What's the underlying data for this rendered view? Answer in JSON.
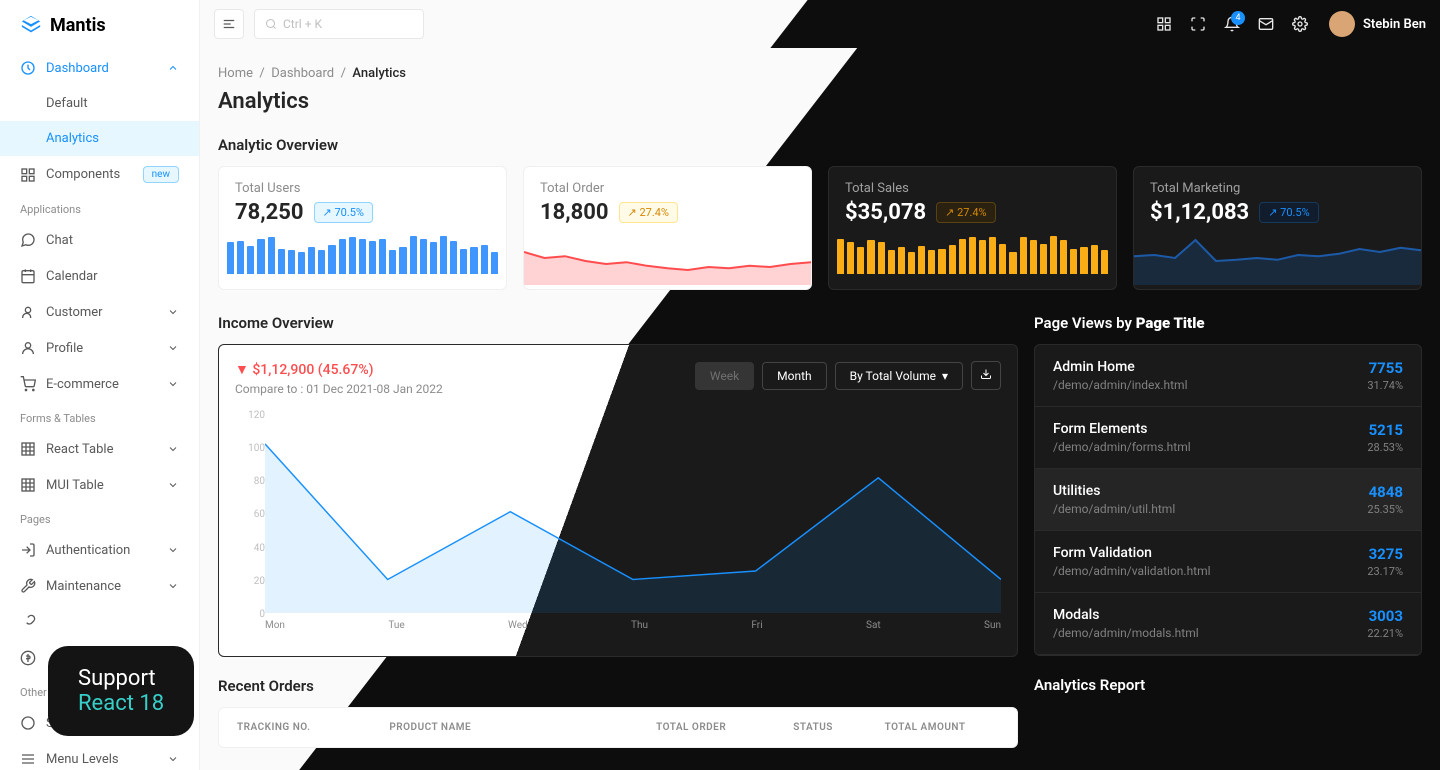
{
  "brand": "Mantis",
  "search": {
    "placeholder": "Ctrl + K"
  },
  "user": {
    "name": "Stebin Ben",
    "notif_count": "4"
  },
  "sidebar": {
    "dashboard": {
      "label": "Dashboard",
      "default": "Default",
      "analytics": "Analytics"
    },
    "components": {
      "label": "Components",
      "badge": "new"
    },
    "sections": {
      "apps": "Applications",
      "forms": "Forms & Tables",
      "pages": "Pages",
      "other": "Other"
    },
    "items": {
      "chat": "Chat",
      "calendar": "Calendar",
      "customer": "Customer",
      "profile": "Profile",
      "ecommerce": "E-commerce",
      "react_table": "React Table",
      "mui_table": "MUI Table",
      "auth": "Authentication",
      "maintenance": "Maintenance",
      "menu_levels": "Menu Levels"
    }
  },
  "breadcrumb": {
    "home": "Home",
    "dashboard": "Dashboard",
    "current": "Analytics"
  },
  "page": {
    "title": "Analytics",
    "overview": "Analytic Overview",
    "income": "Income Overview",
    "pageviews": "Page Views by Page Title",
    "recent": "Recent Orders",
    "analytics_report": "Analytics Report"
  },
  "cards": [
    {
      "label": "Total Users",
      "value": "78,250",
      "delta": "70.5%",
      "delta_type": "up",
      "type": "bar",
      "color": "#4096ff",
      "bars": [
        65,
        68,
        58,
        72,
        75,
        52,
        50,
        45,
        55,
        48,
        60,
        72,
        75,
        72,
        68,
        72,
        50,
        55,
        78,
        72,
        65,
        78,
        68,
        52,
        55,
        60,
        45
      ]
    },
    {
      "label": "Total Order",
      "value": "18,800",
      "delta": "27.4%",
      "delta_type": "warn",
      "type": "area",
      "color": "#ff4d4f",
      "points": [
        55,
        45,
        48,
        40,
        35,
        38,
        32,
        28,
        25,
        30,
        28,
        32,
        30,
        35,
        38
      ]
    },
    {
      "label": "Total Sales",
      "value": "$35,078",
      "delta": "27.4%",
      "delta_type": "dark-warn",
      "type": "bar",
      "color": "#faad14",
      "bars": [
        72,
        65,
        55,
        70,
        65,
        50,
        55,
        45,
        58,
        48,
        52,
        60,
        72,
        75,
        70,
        75,
        62,
        45,
        75,
        70,
        62,
        78,
        70,
        52,
        55,
        60,
        48
      ]
    },
    {
      "label": "Total Marketing",
      "value": "$1,12,083",
      "delta": "70.5%",
      "delta_type": "dark-up",
      "type": "area",
      "color": "#1d5aa8",
      "points": [
        48,
        50,
        45,
        75,
        40,
        42,
        45,
        42,
        50,
        48,
        52,
        60,
        55,
        62,
        58
      ]
    }
  ],
  "income": {
    "value": "$1,12,900 (45.67%)",
    "compare": "Compare to : 01 Dec 2021-08 Jan 2022",
    "controls": {
      "week": "Week",
      "month": "Month",
      "volume": "By Total Volume"
    },
    "y_ticks": [
      "120",
      "100",
      "80",
      "60",
      "40",
      "20",
      "0"
    ],
    "x_ticks": [
      "Mon",
      "Tue",
      "Wed",
      "Thu",
      "Fri",
      "Sat",
      "Sun"
    ],
    "points": [
      100,
      20,
      60,
      20,
      25,
      80,
      20
    ],
    "line_color": "#1890ff",
    "fill_color": "rgba(24,144,255,0.12)"
  },
  "pageviews": [
    {
      "title": "Admin Home",
      "path": "/demo/admin/index.html",
      "count": "7755",
      "pct": "31.74%",
      "hl": false
    },
    {
      "title": "Form Elements",
      "path": "/demo/admin/forms.html",
      "count": "5215",
      "pct": "28.53%",
      "hl": false
    },
    {
      "title": "Utilities",
      "path": "/demo/admin/util.html",
      "count": "4848",
      "pct": "25.35%",
      "hl": true
    },
    {
      "title": "Form Validation",
      "path": "/demo/admin/validation.html",
      "count": "3275",
      "pct": "23.17%",
      "hl": false
    },
    {
      "title": "Modals",
      "path": "/demo/admin/modals.html",
      "count": "3003",
      "pct": "22.21%",
      "hl": false
    }
  ],
  "table": {
    "cols": [
      "TRACKING NO.",
      "PRODUCT NAME",
      "TOTAL ORDER",
      "STATUS",
      "TOTAL AMOUNT"
    ]
  },
  "support": {
    "line1": "Support",
    "line2": "React 18"
  }
}
